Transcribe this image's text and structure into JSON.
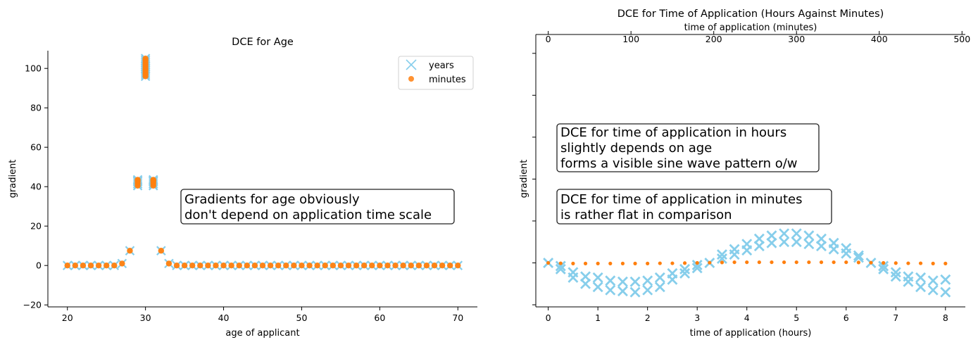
{
  "chart_data": [
    {
      "type": "scatter",
      "title": "DCE for Age",
      "xlabel": "age of applicant",
      "ylabel": "gradient",
      "xlim": [
        17.5,
        72.5
      ],
      "ylim": [
        -21,
        109
      ],
      "x_ticks": [
        20,
        30,
        40,
        50,
        60,
        70
      ],
      "y_ticks": [
        -20,
        0,
        20,
        40,
        60,
        80,
        100
      ],
      "legend_position": "top-right",
      "annotation": [
        "Gradients for age obviously",
        "don't depend on application time scale"
      ],
      "series": [
        {
          "name": "years",
          "marker": "x",
          "color": "#87ceeb",
          "x": [
            20,
            21,
            22,
            23,
            24,
            25,
            26,
            27,
            28,
            29,
            29,
            29,
            29,
            29,
            30,
            30,
            30,
            30,
            30,
            30,
            30,
            30,
            30,
            30,
            31,
            31,
            31,
            31,
            31,
            32,
            33,
            34,
            35,
            36,
            37,
            38,
            39,
            40,
            41,
            42,
            43,
            44,
            45,
            46,
            47,
            48,
            49,
            50,
            51,
            52,
            53,
            54,
            55,
            56,
            57,
            58,
            59,
            60,
            61,
            62,
            63,
            64,
            65,
            66,
            67,
            68,
            69,
            70
          ],
          "y": [
            0,
            0,
            0,
            0,
            0,
            0,
            0,
            1,
            7.5,
            40.5,
            41.5,
            42.5,
            43,
            43.5,
            96,
            97,
            98,
            99,
            100,
            101,
            102,
            103,
            104,
            105,
            40.5,
            41.5,
            42.5,
            43,
            43.5,
            7.5,
            1,
            0,
            0,
            0,
            0,
            0,
            0,
            0,
            0,
            0,
            0,
            0,
            0,
            0,
            0,
            0,
            0,
            0,
            0,
            0,
            0,
            0,
            0,
            0,
            0,
            0,
            0,
            0,
            0,
            0,
            0,
            0,
            0,
            0,
            0,
            0,
            0,
            0
          ]
        },
        {
          "name": "minutes",
          "marker": "o",
          "color": "#ff7f0e",
          "x": [
            20,
            21,
            22,
            23,
            24,
            25,
            26,
            27,
            28,
            29,
            29,
            29,
            29,
            29,
            30,
            30,
            30,
            30,
            30,
            30,
            30,
            30,
            30,
            30,
            31,
            31,
            31,
            31,
            31,
            32,
            33,
            34,
            35,
            36,
            37,
            38,
            39,
            40,
            41,
            42,
            43,
            44,
            45,
            46,
            47,
            48,
            49,
            50,
            51,
            52,
            53,
            54,
            55,
            56,
            57,
            58,
            59,
            60,
            61,
            62,
            63,
            64,
            65,
            66,
            67,
            68,
            69,
            70
          ],
          "y": [
            0,
            0,
            0,
            0,
            0,
            0,
            0,
            1,
            7.5,
            40.5,
            41.5,
            42.5,
            43,
            43.5,
            96,
            97,
            98,
            99,
            100,
            101,
            102,
            103,
            104,
            105,
            40.5,
            41.5,
            42.5,
            43,
            43.5,
            7.5,
            1,
            0,
            0,
            0,
            0,
            0,
            0,
            0,
            0,
            0,
            0,
            0,
            0,
            0,
            0,
            0,
            0,
            0,
            0,
            0,
            0,
            0,
            0,
            0,
            0,
            0,
            0,
            0,
            0,
            0,
            0,
            0,
            0,
            0,
            0,
            0,
            0,
            0
          ]
        }
      ]
    },
    {
      "type": "scatter",
      "title": "DCE for Time of Application (Hours Against Minutes)",
      "xlabel": "time of application (hours)",
      "xlabel_top": "time of application (minutes)",
      "ylabel": "gradient",
      "xlim": [
        -0.25,
        8.4
      ],
      "xlim_top": [
        -15,
        504
      ],
      "ylim": [
        -21,
        109
      ],
      "x_ticks": [
        0,
        1,
        2,
        3,
        4,
        5,
        6,
        7,
        8
      ],
      "x_ticks_top": [
        0,
        100,
        200,
        300,
        400,
        500
      ],
      "annotations": [
        [
          "DCE for time of application in hours",
          "slightly depends on age",
          "forms a visible sine wave pattern o/w"
        ],
        [
          "DCE for time of application in minutes",
          "is rather flat in comparison"
        ]
      ],
      "series": [
        {
          "name": "hours",
          "marker": "x",
          "color": "#87ceeb",
          "x": [
            0,
            0.25,
            0.25,
            0.5,
            0.5,
            0.75,
            0.75,
            1,
            1,
            1.25,
            1.25,
            1.5,
            1.5,
            1.75,
            1.75,
            2,
            2,
            2.25,
            2.25,
            2.5,
            2.5,
            2.75,
            2.75,
            3,
            3,
            3.25,
            3.5,
            3.5,
            3.75,
            3.75,
            4,
            4,
            4.25,
            4.25,
            4.5,
            4.5,
            4.75,
            4.75,
            5,
            5,
            5.25,
            5.25,
            5.5,
            5.5,
            5.75,
            5.75,
            6,
            6,
            6.25,
            6.25,
            6.5,
            6.75,
            6.75,
            7,
            7,
            7.25,
            7.25,
            7.5,
            7.5,
            7.75,
            7.75,
            8,
            8
          ],
          "y": [
            0,
            -1.5,
            -3,
            -4.5,
            -7,
            -6.5,
            -10,
            -7,
            -11.5,
            -8.5,
            -13,
            -9,
            -13.5,
            -9,
            -14,
            -8.5,
            -13,
            -7,
            -11.5,
            -5,
            -8,
            -3,
            -5,
            -1,
            -2.5,
            0,
            2,
            4,
            4,
            6.5,
            6,
            9,
            8,
            11.5,
            9.5,
            13,
            10,
            14,
            10,
            14,
            9,
            13,
            8,
            11.5,
            6.5,
            9.5,
            4.5,
            7,
            2.5,
            3.5,
            0,
            -1.5,
            -3,
            -4.5,
            -6.5,
            -6.5,
            -9,
            -7,
            -11.5,
            -8.5,
            -13,
            -8,
            -14
          ]
        },
        {
          "name": "minutes",
          "marker": "o",
          "color": "#ff7f0e",
          "x": [
            0,
            0.25,
            0.5,
            0.75,
            1,
            1.25,
            1.5,
            1.75,
            2,
            2.25,
            2.5,
            2.75,
            3,
            3.25,
            3.5,
            3.75,
            4,
            4.25,
            4.5,
            4.75,
            5,
            5.25,
            5.5,
            5.75,
            6,
            6.25,
            6.5,
            6.75,
            7,
            7.25,
            7.5,
            7.75,
            8
          ],
          "y": [
            0,
            -0.2,
            -0.3,
            -0.3,
            -0.3,
            -0.3,
            -0.3,
            -0.3,
            -0.3,
            -0.2,
            -0.2,
            -0.1,
            0,
            0.1,
            0.2,
            0.3,
            0.3,
            0.3,
            0.3,
            0.3,
            0.3,
            0.3,
            0.3,
            0.3,
            0.3,
            0.2,
            0.1,
            0,
            -0.1,
            -0.2,
            -0.2,
            -0.3,
            -0.3
          ]
        }
      ]
    }
  ]
}
